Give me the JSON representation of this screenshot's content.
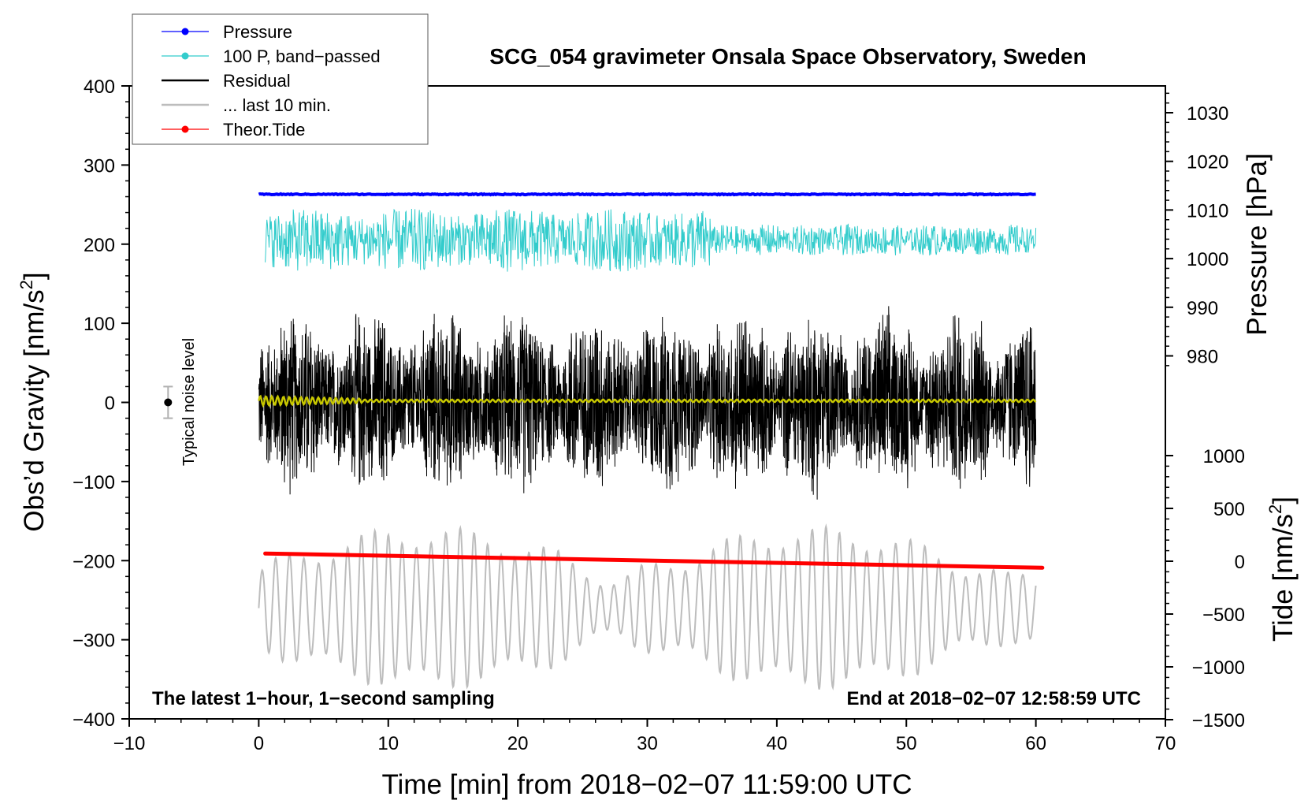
{
  "chart_data": {
    "type": "line",
    "title": "SCG_054 gravimeter Onsala Space Observatory, Sweden",
    "xlabel": "Time [min] from 2018−02−07 11:59:00 UTC",
    "ylabel_main": "Obs’d Gravity [nm/s",
    "ylabel_main_sup": "2",
    "ylabel_main_end": "]",
    "ylabel_pressure": "Pressure [hPa]",
    "ylabel_tide": "Tide [nm/s",
    "ylabel_tide_sup": "2",
    "ylabel_tide_end": "]",
    "xlim": [
      -10,
      70
    ],
    "ylim": [
      -400,
      400
    ],
    "x_ticks": [
      "−10",
      "0",
      "10",
      "20",
      "30",
      "40",
      "50",
      "60",
      "70"
    ],
    "x_tick_values": [
      -10,
      0,
      10,
      20,
      30,
      40,
      50,
      60,
      70
    ],
    "y_ticks": [
      "400",
      "300",
      "200",
      "100",
      "0",
      "−100",
      "−200",
      "−300",
      "−400"
    ],
    "y_tick_values": [
      400,
      300,
      200,
      100,
      0,
      -100,
      -200,
      -300,
      -400
    ],
    "pressure_ticks": [
      "1030",
      "1020",
      "1010",
      "1000",
      "990",
      "980"
    ],
    "pressure_tick_values": [
      1030,
      1020,
      1010,
      1000,
      990,
      980
    ],
    "tide_ticks": [
      "1000",
      "500",
      "0",
      "−500",
      "−1000",
      "−1500"
    ],
    "tide_tick_values": [
      1000,
      500,
      0,
      -500,
      -1000,
      -1500
    ],
    "annotation_left": "The latest 1−hour, 1−second sampling",
    "annotation_right": "End at 2018−02−07 12:58:59 UTC",
    "noise_label": "Typical noise level",
    "noise_level": {
      "x": -7,
      "center": 0,
      "half_range": 20
    },
    "legend": [
      {
        "label": "Pressure",
        "color": "#0000ff",
        "marker": true
      },
      {
        "label": "100 P, band−passed",
        "color": "#33cccc",
        "marker": true
      },
      {
        "label": "Residual",
        "color": "#000000",
        "marker": false
      },
      {
        "label": "... last 10 min.",
        "color": "#bdbdbd",
        "marker": false
      },
      {
        "label": "Theor.Tide",
        "color": "#ff0000",
        "marker": true
      }
    ],
    "series": [
      {
        "name": "Pressure",
        "color": "#0000ff",
        "x": [
          0,
          60
        ],
        "y_gravity_units": [
          263,
          263
        ],
        "pressure_hPa": [
          1012.6,
          1012.6
        ]
      },
      {
        "name": "100 P, band−passed",
        "color": "#33cccc",
        "x_range": [
          0.5,
          60
        ],
        "center": 205,
        "amplitude_approx": 40
      },
      {
        "name": "Residual",
        "color": "#000000",
        "x_range": [
          0,
          60
        ],
        "center": 0,
        "amplitude_approx": 110
      },
      {
        "name": "Residual smoothed",
        "color": "#c8c800",
        "x_range": [
          0,
          60
        ],
        "center": 2,
        "amplitude_approx": 4
      },
      {
        "name": "... last 10 min.",
        "color": "#bdbdbd",
        "x_range": [
          0,
          60
        ],
        "center": -260,
        "amplitude_approx": 90
      },
      {
        "name": "Theor.Tide",
        "color": "#ff0000",
        "x": [
          0.5,
          60.5
        ],
        "y_gravity_units": [
          -191,
          -209
        ],
        "tide_nm_s2": [
          70,
          -80
        ]
      }
    ]
  }
}
